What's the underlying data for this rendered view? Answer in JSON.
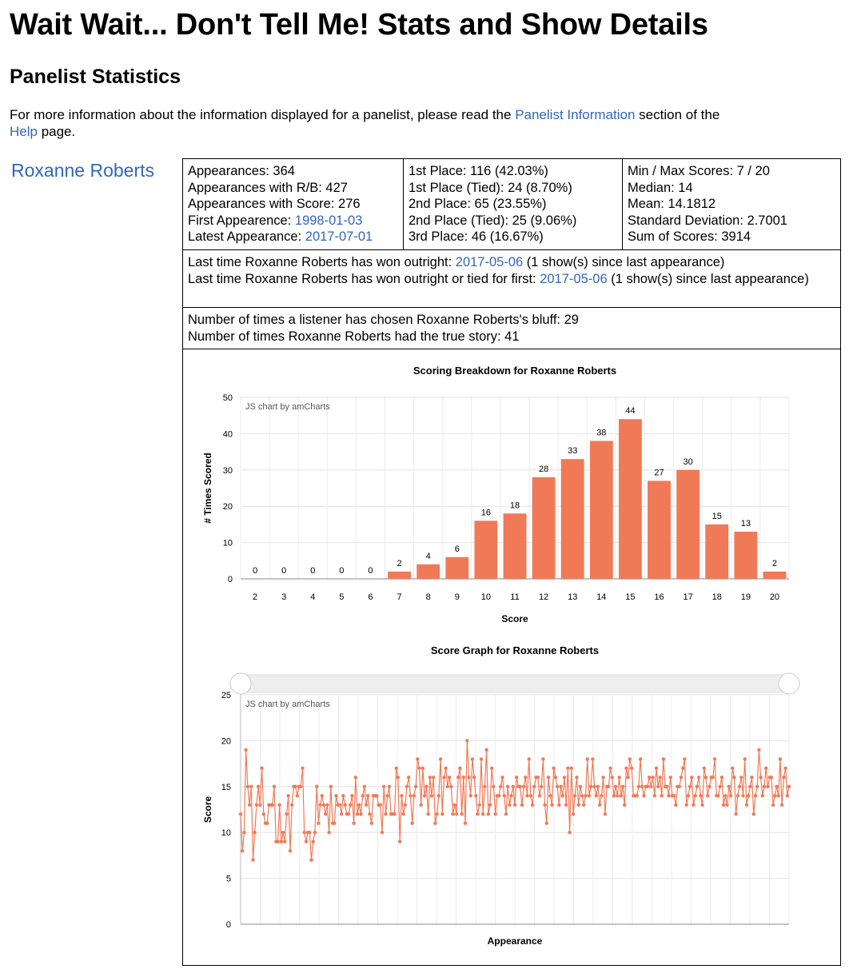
{
  "page": {
    "title": "Wait Wait... Don't Tell Me! Stats and Show Details",
    "section_title": "Panelist Statistics",
    "intro_before": "For more information about the information displayed for a panelist, please read the ",
    "intro_link1": "Panelist Information",
    "intro_middle": " section of the ",
    "intro_link2": "Help",
    "intro_after": " page."
  },
  "panelist": {
    "name": "Roxanne Roberts",
    "appearances": "Appearances: 364",
    "appearances_rb": "Appearances with R/B: 427",
    "appearances_score": "Appearances with Score: 276",
    "first_label": "First Appearence: ",
    "first_date": "1998-01-03",
    "latest_label": "Latest Appearance: ",
    "latest_date": "2017-07-01",
    "first_place": "1st Place: 116 (42.03%)",
    "first_tied": "1st Place (Tied): 24 (8.70%)",
    "second_place": "2nd Place: 65 (23.55%)",
    "second_tied": "2nd Place (Tied): 25 (9.06%)",
    "third_place": "3rd Place: 46 (16.67%)",
    "minmax": "Min / Max Scores: 7 / 20",
    "median": "Median: 14",
    "mean": "Mean: 14.1812",
    "stddev": "Standard Deviation: 2.7001",
    "sum": "Sum of Scores: 3914",
    "won_label": "Last time Roxanne Roberts has won outright: ",
    "won_date": "2017-05-06",
    "won_after": " (1 show(s) since last appearance)",
    "tied_label": "Last time Roxanne Roberts has won outright or tied for first: ",
    "tied_date": "2017-05-06",
    "tied_after": " (1 show(s) since last appearance)",
    "bluff": "Number of times a listener has chosen Roxanne Roberts's bluff: 29",
    "true_story": "Number of times Roxanne Roberts had the true story: 41"
  },
  "colors": {
    "bar": "#f07a58",
    "link": "#3366bb"
  },
  "chart_data": [
    {
      "type": "bar",
      "title": "Scoring Breakdown for Roxanne Roberts",
      "watermark": "JS chart by amCharts",
      "xlabel": "Score",
      "ylabel": "# Times Scored",
      "ylim": [
        0,
        50
      ],
      "yticks": [
        0,
        10,
        20,
        30,
        40,
        50
      ],
      "categories": [
        "2",
        "3",
        "4",
        "5",
        "6",
        "7",
        "8",
        "9",
        "10",
        "11",
        "12",
        "13",
        "14",
        "15",
        "16",
        "17",
        "18",
        "19",
        "20"
      ],
      "values": [
        0,
        0,
        0,
        0,
        0,
        2,
        4,
        6,
        16,
        18,
        28,
        33,
        38,
        44,
        27,
        30,
        15,
        13,
        2
      ],
      "grid": true
    },
    {
      "type": "line",
      "title": "Score Graph for Roxanne Roberts",
      "watermark": "JS chart by amCharts",
      "xlabel": "Appearance",
      "ylabel": "Score",
      "ylim": [
        0,
        25
      ],
      "yticks": [
        0,
        5,
        10,
        15,
        20,
        25
      ],
      "grid": true,
      "markers": true,
      "scrollbar": true,
      "values": [
        12,
        8,
        10,
        19,
        15,
        13,
        15,
        7,
        10,
        13,
        15,
        13,
        17,
        12,
        11,
        11,
        13,
        13,
        13,
        15,
        9,
        9,
        13,
        9,
        10,
        9,
        12,
        14,
        8,
        13,
        15,
        15,
        14,
        15,
        15,
        17,
        10,
        9,
        10,
        10,
        7,
        9,
        10,
        15,
        11,
        13,
        14,
        13,
        12,
        13,
        10,
        15,
        11,
        11,
        14,
        13,
        13,
        12,
        14,
        13,
        12,
        12,
        13,
        14,
        11,
        16,
        12,
        13,
        12,
        14,
        15,
        13,
        14,
        12,
        11,
        14,
        14,
        14,
        13,
        13,
        10,
        15,
        12,
        14,
        15,
        12,
        12,
        12,
        17,
        16,
        9,
        14,
        12,
        13,
        15,
        16,
        14,
        11,
        14,
        15,
        18,
        17,
        13,
        17,
        14,
        15,
        12,
        16,
        14,
        16,
        11,
        12,
        14,
        18,
        12,
        16,
        17,
        15,
        16,
        15,
        12,
        13,
        12,
        16,
        17,
        12,
        16,
        11,
        20,
        16,
        14,
        18,
        16,
        14,
        12,
        13,
        18,
        12,
        15,
        19,
        12,
        13,
        17,
        15,
        12,
        14,
        14,
        15,
        16,
        14,
        12,
        15,
        13,
        14,
        15,
        13,
        16,
        15,
        15,
        13,
        15,
        16,
        14,
        18,
        14,
        13,
        15,
        16,
        16,
        14,
        15,
        18,
        13,
        11,
        16,
        14,
        13,
        17,
        16,
        15,
        13,
        15,
        14,
        16,
        13,
        17,
        10,
        17,
        12,
        14,
        16,
        13,
        15,
        14,
        13,
        14,
        18,
        14,
        15,
        18,
        15,
        14,
        15,
        13,
        14,
        16,
        12,
        15,
        15,
        17,
        16,
        14,
        15,
        14,
        16,
        14,
        15,
        13,
        17,
        16,
        18,
        17,
        14,
        14,
        14,
        15,
        18,
        15,
        14,
        15,
        15,
        16,
        15,
        16,
        14,
        17,
        15,
        16,
        14,
        18,
        15,
        15,
        14,
        16,
        14,
        14,
        13,
        15,
        15,
        16,
        17,
        18,
        13,
        14,
        15,
        16,
        13,
        14,
        15,
        16,
        14,
        13,
        17,
        16,
        14,
        15,
        16,
        16,
        18,
        14,
        14,
        15,
        16,
        13,
        14,
        13,
        15,
        14,
        17,
        16,
        12,
        14,
        15,
        16,
        14,
        18,
        13,
        14,
        15,
        16,
        12,
        14,
        15,
        19,
        16,
        14,
        15,
        17,
        15,
        16,
        16,
        13,
        14,
        15,
        14,
        18,
        13,
        16,
        17,
        14,
        15
      ]
    }
  ]
}
